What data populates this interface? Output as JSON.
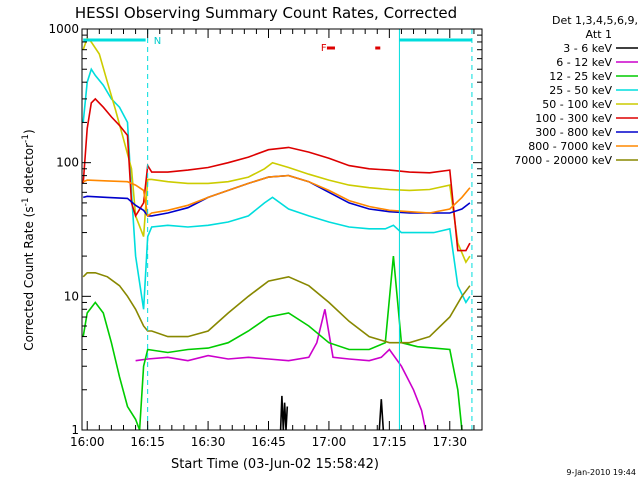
{
  "chart_data": {
    "type": "line",
    "title": "HESSI Observing Summary Count Rates, Corrected",
    "xlabel": "Start Time (03-Jun-02 15:58:42)",
    "ylabel_main": "Corrected Count Rate (s",
    "ylabel_sup1": "-1",
    "ylabel_mid": " detector",
    "ylabel_sup2": "-1",
    "ylabel_end": ")",
    "y_scale": "log",
    "ylim": [
      1,
      1000
    ],
    "xlim": [
      "15:58:42",
      "17:38:00"
    ],
    "x_tick_labels": [
      "16:00",
      "16:15",
      "16:30",
      "16:45",
      "17:00",
      "17:15",
      "17:30"
    ],
    "y_tick_labels": [
      "1",
      "10",
      "100",
      "1000"
    ],
    "legend_header": [
      "Det 1,3,4,5,6,9,",
      "Att 1"
    ],
    "timestamp": "9-Jan-2010 19:44",
    "flag_N": "N",
    "flag_F": "F",
    "legend_placement": "right, outside plot",
    "series": [
      {
        "name": "3 - 6 keV",
        "color": "#000000",
        "segments": [
          {
            "t": [
              "16:48:00",
              "16:48:20",
              "16:48:40",
              "16:49:00",
              "16:49:20",
              "16:49:40"
            ],
            "v": [
              1.0,
              1.8,
              1.0,
              1.6,
              1.0,
              1.5
            ]
          },
          {
            "t": [
              "17:12:30",
              "17:13:00",
              "17:13:30"
            ],
            "v": [
              1.0,
              1.7,
              1.0
            ]
          }
        ]
      },
      {
        "name": "6 - 12 keV",
        "color": "#cc00cc",
        "t": [
          "16:12",
          "16:15",
          "16:20",
          "16:25",
          "16:30",
          "16:35",
          "16:40",
          "16:45",
          "16:50",
          "16:55",
          "16:57",
          "16:59",
          "17:01",
          "17:05",
          "17:10",
          "17:13",
          "17:15",
          "17:18",
          "17:21",
          "17:23",
          "17:24"
        ],
        "v": [
          3.3,
          3.4,
          3.5,
          3.3,
          3.6,
          3.4,
          3.5,
          3.4,
          3.3,
          3.5,
          4.5,
          8.0,
          3.5,
          3.4,
          3.3,
          3.5,
          4.0,
          3.0,
          2.0,
          1.4,
          1.0
        ]
      },
      {
        "name": "12 - 25 keV",
        "color": "#00cc00",
        "t": [
          "15:59",
          "16:00",
          "16:02",
          "16:04",
          "16:06",
          "16:08",
          "16:10",
          "16:12",
          "16:13",
          "16:14",
          "16:15",
          "16:20",
          "16:25",
          "16:30",
          "16:35",
          "16:40",
          "16:45",
          "16:50",
          "16:55",
          "17:00",
          "17:05",
          "17:10",
          "17:14",
          "17:16",
          "17:18",
          "17:22",
          "17:26",
          "17:30",
          "17:32",
          "17:33"
        ],
        "v": [
          5.0,
          7.5,
          9.0,
          7.5,
          4.5,
          2.5,
          1.5,
          1.2,
          1.0,
          3.0,
          4.0,
          3.8,
          4.0,
          4.1,
          4.5,
          5.5,
          7.0,
          7.5,
          6.0,
          4.5,
          4.0,
          4.0,
          4.5,
          20.0,
          4.5,
          4.2,
          4.1,
          4.0,
          2.0,
          1.0
        ]
      },
      {
        "name": "25 - 50 keV",
        "color": "#00dddd",
        "t": [
          "15:59",
          "16:00",
          "16:01",
          "16:02",
          "16:04",
          "16:06",
          "16:08",
          "16:10",
          "16:11",
          "16:12",
          "16:14",
          "16:15",
          "16:16",
          "16:20",
          "16:25",
          "16:30",
          "16:35",
          "16:40",
          "16:44",
          "16:46",
          "16:50",
          "16:55",
          "17:00",
          "17:05",
          "17:10",
          "17:14",
          "17:16",
          "17:18",
          "17:22",
          "17:26",
          "17:30",
          "17:32",
          "17:34",
          "17:35"
        ],
        "v": [
          200,
          400,
          500,
          450,
          380,
          300,
          260,
          200,
          60,
          20,
          8,
          28,
          33,
          34,
          33,
          34,
          36,
          40,
          50,
          55,
          45,
          40,
          36,
          33,
          32,
          32,
          34,
          30,
          30,
          30,
          32,
          12,
          9,
          10
        ]
      },
      {
        "name": "50 - 100 keV",
        "color": "#cccc00",
        "t": [
          "15:59",
          "16:00",
          "16:01",
          "16:03",
          "16:05",
          "16:07",
          "16:09",
          "16:11",
          "16:12",
          "16:14",
          "16:15",
          "16:16",
          "16:20",
          "16:25",
          "16:30",
          "16:35",
          "16:40",
          "16:44",
          "16:46",
          "16:50",
          "16:55",
          "17:00",
          "17:05",
          "17:10",
          "17:15",
          "17:20",
          "17:25",
          "17:30",
          "17:32",
          "17:34",
          "17:35"
        ],
        "v": [
          700,
          850,
          800,
          650,
          400,
          250,
          150,
          90,
          40,
          28,
          75,
          75,
          72,
          70,
          70,
          72,
          78,
          90,
          100,
          92,
          82,
          74,
          68,
          65,
          63,
          62,
          63,
          68,
          25,
          18,
          20
        ]
      },
      {
        "name": "100 - 300 keV",
        "color": "#dd0000",
        "t": [
          "15:59",
          "16:00",
          "16:01",
          "16:02",
          "16:04",
          "16:06",
          "16:08",
          "16:10",
          "16:11",
          "16:12",
          "16:14",
          "16:15",
          "16:16",
          "16:20",
          "16:25",
          "16:30",
          "16:35",
          "16:40",
          "16:45",
          "16:50",
          "16:55",
          "17:00",
          "17:05",
          "17:10",
          "17:15",
          "17:20",
          "17:25",
          "17:30",
          "17:32",
          "17:34",
          "17:35"
        ],
        "v": [
          70,
          180,
          280,
          300,
          260,
          220,
          190,
          160,
          50,
          40,
          50,
          95,
          85,
          85,
          88,
          92,
          100,
          110,
          125,
          130,
          120,
          108,
          95,
          90,
          88,
          85,
          84,
          88,
          22,
          22,
          25
        ]
      },
      {
        "name": "300 - 800 keV",
        "color": "#0000cc",
        "t": [
          "15:59",
          "16:00",
          "16:05",
          "16:10",
          "16:12",
          "16:14",
          "16:15",
          "16:16",
          "16:20",
          "16:25",
          "16:30",
          "16:35",
          "16:40",
          "16:45",
          "16:50",
          "16:55",
          "17:00",
          "17:05",
          "17:10",
          "17:15",
          "17:20",
          "17:25",
          "17:30",
          "17:33",
          "17:35"
        ],
        "v": [
          55,
          56,
          55,
          54,
          48,
          44,
          40,
          40,
          42,
          46,
          55,
          62,
          70,
          78,
          80,
          72,
          60,
          50,
          45,
          43,
          42,
          42,
          42,
          45,
          50
        ]
      },
      {
        "name": "800 - 7000 keV",
        "color": "#ff8800",
        "t": [
          "15:59",
          "16:00",
          "16:05",
          "16:10",
          "16:12",
          "16:14",
          "16:15",
          "16:16",
          "16:20",
          "16:25",
          "16:30",
          "16:35",
          "16:40",
          "16:45",
          "16:50",
          "16:55",
          "17:00",
          "17:05",
          "17:10",
          "17:15",
          "17:20",
          "17:25",
          "17:30",
          "17:33",
          "17:35"
        ],
        "v": [
          72,
          74,
          73,
          72,
          68,
          62,
          40,
          42,
          44,
          48,
          55,
          62,
          70,
          78,
          80,
          72,
          62,
          52,
          47,
          44,
          43,
          42,
          45,
          55,
          65
        ]
      },
      {
        "name": "7000 - 20000 keV",
        "color": "#888800",
        "t": [
          "15:59",
          "16:00",
          "16:02",
          "16:05",
          "16:08",
          "16:10",
          "16:12",
          "16:14",
          "16:15",
          "16:16",
          "16:20",
          "16:25",
          "16:30",
          "16:35",
          "16:40",
          "16:45",
          "16:50",
          "16:55",
          "17:00",
          "17:05",
          "17:10",
          "17:15",
          "17:20",
          "17:25",
          "17:30",
          "17:33",
          "17:35"
        ],
        "v": [
          14,
          15,
          15,
          14,
          12,
          10,
          8,
          6,
          5.5,
          5.5,
          5.0,
          5.0,
          5.5,
          7.5,
          10,
          13,
          14,
          12,
          9,
          6.5,
          5.0,
          4.5,
          4.5,
          5.0,
          7.0,
          10,
          12
        ]
      }
    ]
  }
}
